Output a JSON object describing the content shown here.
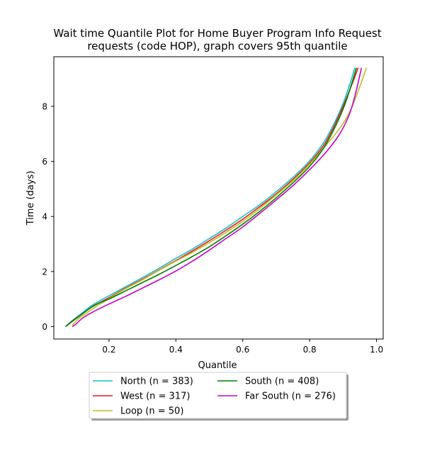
{
  "chart_data": {
    "type": "line",
    "title": "Wait time Quantile Plot for Home Buyer Program Info Request",
    "subtitle": "requests (code HOP), graph covers 95th quantile",
    "xlabel": "Quantile",
    "ylabel": "Time (days)",
    "xlim": [
      0.035,
      1.02
    ],
    "ylim": [
      -0.45,
      9.8
    ],
    "xticks": [
      0.2,
      0.4,
      0.6,
      0.8,
      1.0
    ],
    "xtick_labels": [
      "0.2",
      "0.4",
      "0.6",
      "0.8",
      "1.0"
    ],
    "yticks": [
      0,
      2,
      4,
      6,
      8
    ],
    "ytick_labels": [
      "0",
      "2",
      "4",
      "6",
      "8"
    ],
    "grid": false,
    "legend_placement": "below-plot",
    "series": [
      {
        "name": "North (n = 383)",
        "color": "#17becf",
        "x": [
          0.07,
          0.09,
          0.12,
          0.15,
          0.2,
          0.25,
          0.3,
          0.35,
          0.4,
          0.45,
          0.5,
          0.55,
          0.6,
          0.65,
          0.7,
          0.75,
          0.8,
          0.84,
          0.87,
          0.9,
          0.92,
          0.935
        ],
        "y": [
          0.0,
          0.22,
          0.5,
          0.78,
          1.12,
          1.45,
          1.78,
          2.12,
          2.48,
          2.82,
          3.2,
          3.58,
          4.0,
          4.42,
          4.9,
          5.42,
          6.02,
          6.65,
          7.3,
          8.1,
          8.8,
          9.4
        ]
      },
      {
        "name": "West (n = 317)",
        "color": "#e41a1c",
        "x": [
          0.07,
          0.09,
          0.12,
          0.15,
          0.2,
          0.25,
          0.3,
          0.35,
          0.4,
          0.45,
          0.5,
          0.55,
          0.6,
          0.65,
          0.7,
          0.75,
          0.8,
          0.84,
          0.87,
          0.9,
          0.925,
          0.945
        ],
        "y": [
          0.0,
          0.2,
          0.46,
          0.72,
          1.05,
          1.4,
          1.72,
          2.06,
          2.4,
          2.75,
          3.12,
          3.5,
          3.9,
          4.35,
          4.82,
          5.35,
          5.95,
          6.55,
          7.2,
          8.0,
          8.75,
          9.4
        ]
      },
      {
        "name": "Loop (n = 50)",
        "color": "#bcbd22",
        "x": [
          0.09,
          0.11,
          0.14,
          0.17,
          0.2,
          0.25,
          0.3,
          0.35,
          0.4,
          0.45,
          0.5,
          0.55,
          0.6,
          0.65,
          0.7,
          0.75,
          0.8,
          0.85,
          0.89,
          0.92,
          0.945,
          0.97
        ],
        "y": [
          0.05,
          0.3,
          0.55,
          0.8,
          1.02,
          1.38,
          1.7,
          2.05,
          2.38,
          2.7,
          3.05,
          3.42,
          3.82,
          4.28,
          4.78,
          5.3,
          5.9,
          6.6,
          7.2,
          7.8,
          8.55,
          9.4
        ]
      },
      {
        "name": "South (n = 408)",
        "color": "#008000",
        "x": [
          0.07,
          0.1,
          0.13,
          0.16,
          0.2,
          0.25,
          0.3,
          0.35,
          0.4,
          0.45,
          0.5,
          0.55,
          0.6,
          0.65,
          0.7,
          0.75,
          0.8,
          0.84,
          0.87,
          0.9,
          0.92,
          0.94
        ],
        "y": [
          0.0,
          0.28,
          0.55,
          0.8,
          1.0,
          1.3,
          1.6,
          1.9,
          2.22,
          2.55,
          2.9,
          3.3,
          3.72,
          4.18,
          4.68,
          5.22,
          5.82,
          6.45,
          7.1,
          7.9,
          8.6,
          9.4
        ]
      },
      {
        "name": "Far South (n = 276)",
        "color": "#c700c7",
        "x": [
          0.09,
          0.1,
          0.12,
          0.15,
          0.2,
          0.25,
          0.3,
          0.35,
          0.4,
          0.45,
          0.5,
          0.55,
          0.6,
          0.65,
          0.7,
          0.75,
          0.8,
          0.85,
          0.89,
          0.92,
          0.94,
          0.955
        ],
        "y": [
          0.0,
          0.08,
          0.3,
          0.52,
          0.82,
          1.1,
          1.4,
          1.7,
          2.02,
          2.38,
          2.78,
          3.2,
          3.62,
          4.1,
          4.6,
          5.12,
          5.7,
          6.35,
          7.0,
          7.75,
          8.6,
          9.4
        ]
      }
    ]
  }
}
